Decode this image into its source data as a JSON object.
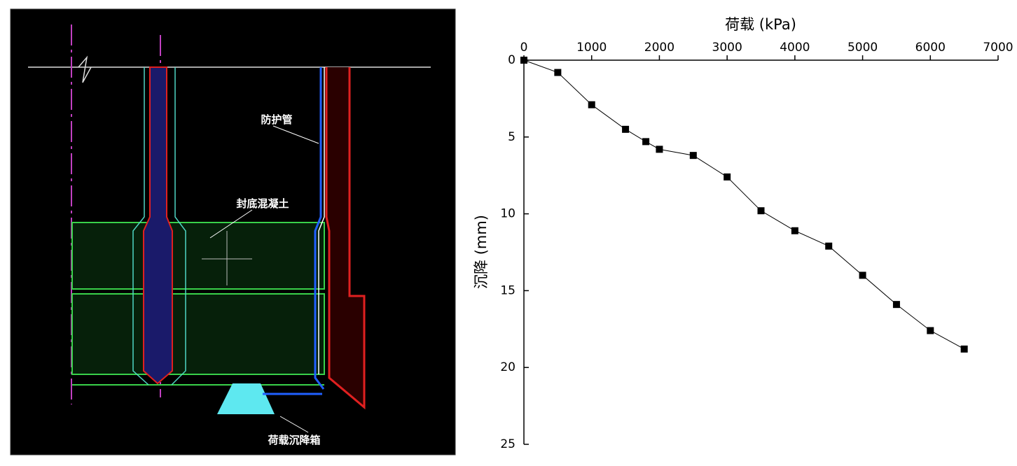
{
  "diagram": {
    "labels": [
      "防护管",
      "封底混凝土",
      "荷载沉降箱"
    ]
  },
  "chart_data": {
    "type": "line",
    "xlabel": "荷载 (kPa)",
    "ylabel": "沉降 (mm)",
    "x": [
      0,
      500,
      1000,
      1500,
      1800,
      2000,
      2500,
      3000,
      3500,
      4000,
      4500,
      5000,
      5500,
      6000,
      6500
    ],
    "values": [
      0,
      0.8,
      2.9,
      4.5,
      5.3,
      5.8,
      6.2,
      7.6,
      9.8,
      11.1,
      12.1,
      14.0,
      15.9,
      17.6,
      18.8
    ],
    "color": "#000000",
    "xlim": [
      0,
      7000
    ],
    "xticks": [
      0,
      1000,
      2000,
      3000,
      4000,
      5000,
      6000,
      7000
    ],
    "ylim": [
      0,
      25
    ],
    "yticks": [
      0,
      5,
      10,
      15,
      20,
      25
    ],
    "y_inverted": true,
    "x_axis_position": "top"
  }
}
